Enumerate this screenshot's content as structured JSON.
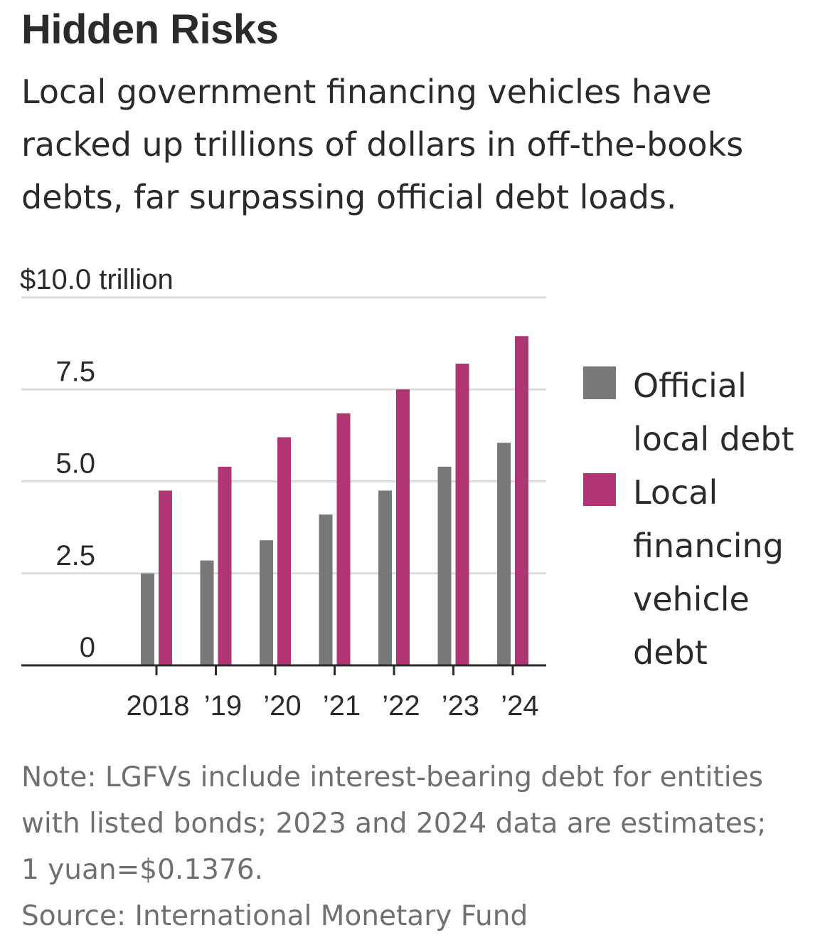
{
  "title": "Hidden Risks",
  "subtitle_lines": [
    "Local government financing vehicles have",
    "racked up trillions of dollars in off-the-books",
    "debts, far surpassing official debt loads."
  ],
  "note_lines": [
    "Note: LGFVs include interest-bearing debt for entities",
    "with listed bonds; 2023 and 2024 data are estimates;",
    "1 yuan=$0.1376."
  ],
  "source": "Source: International Monetary Fund",
  "legend": {
    "official_lines": [
      "Official",
      "local debt"
    ],
    "lgfv_lines": [
      "Local",
      "financing",
      "vehicle",
      "debt"
    ]
  },
  "colors": {
    "official": "#787878",
    "lgfv": "#b03572",
    "gridline": "#dcdcdc",
    "axis": "#2b2b2b"
  },
  "chart_data": {
    "type": "bar",
    "categories": [
      "2018",
      "’19",
      "’20",
      "’21",
      "’22",
      "’23",
      "’24"
    ],
    "series": [
      {
        "name": "Official local debt",
        "values": [
          2.5,
          2.85,
          3.4,
          4.1,
          4.75,
          5.4,
          6.05
        ]
      },
      {
        "name": "Local financing vehicle debt",
        "values": [
          4.75,
          5.4,
          6.2,
          6.85,
          7.5,
          8.2,
          8.95
        ]
      }
    ],
    "ylim": [
      0,
      10
    ],
    "yticks": [
      0,
      2.5,
      5.0,
      7.5,
      10.0
    ],
    "ytick_labels": [
      "0",
      "2.5",
      "5.0",
      "7.5",
      "$10.0 trillion"
    ],
    "grid": true,
    "legend_position": "right"
  }
}
